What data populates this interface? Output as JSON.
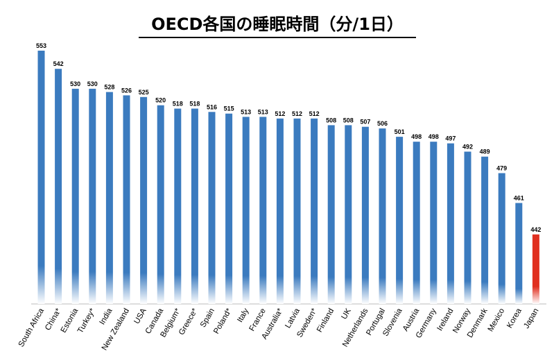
{
  "chart_data": {
    "type": "bar",
    "title": "OECD各国の睡眠時間（分/1日）",
    "xlabel": "",
    "ylabel": "",
    "categories": [
      "South Africa",
      "China*",
      "Estonia",
      "Turkey*",
      "India",
      "New Zealand",
      "USA",
      "Canada",
      "Belgium*",
      "Greece*",
      "Spain",
      "Poland*",
      "Italy",
      "France",
      "Australia*",
      "Latvia",
      "Sweden*",
      "Finland",
      "UK",
      "Netherlands",
      "Portugal",
      "Slovenia",
      "Austria",
      "Germany",
      "Ireland",
      "Norway",
      "Denmark",
      "Mexico",
      "Korea",
      "Japan"
    ],
    "values": [
      553,
      542,
      530,
      530,
      528,
      526,
      525,
      520,
      518,
      518,
      516,
      515,
      513,
      513,
      512,
      512,
      512,
      508,
      508,
      507,
      506,
      501,
      498,
      498,
      497,
      492,
      489,
      479,
      461,
      442
    ],
    "ylim": [
      400,
      560
    ],
    "grid": false,
    "legend": "none",
    "colors": {
      "bar": "#3b7bbf",
      "highlight": "#e03020"
    },
    "highlight_category": "Japan"
  }
}
